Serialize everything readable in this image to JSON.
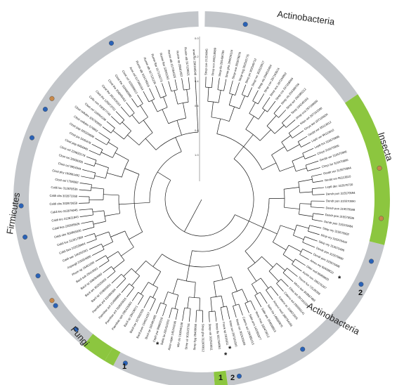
{
  "clade_labels": {
    "actino_top": "Actinobacteria",
    "insecta": "Insecta",
    "actino_bottom": "Actinobacteria",
    "fungi": "Fungi",
    "firmicutes": "Firmicutes"
  },
  "annotations": {
    "mark_1_left": "1",
    "mark_1_bottom": "1",
    "mark_2_bottom": "2",
    "mark_2_right": "2",
    "asterisk": "*"
  },
  "scale_ticks": [
    "1.0",
    "0.8",
    "0.6",
    "0.4",
    "0.2",
    "0.0"
  ],
  "colors": {
    "ring_gray": "#c3c6ca",
    "insecta_green": "#8cc63f",
    "blue_dot": "#2a62b6",
    "orange_dot": "#c7884a",
    "tree_line": "#1a1a1a"
  },
  "leaves": [
    "Strep coe 21224845",
    "Strep sco 290218089",
    "Strep fla 291436785",
    "Strep gha 294534124",
    "Strep sva 302678876",
    "Strep hyg 302542776",
    "Strep pri 302549712",
    "Strep roc 302529917",
    "Strep cla 294810464",
    "Strep con 297193974",
    "Strep sco 297204862",
    "Strep ros 297168094",
    "Strep cls 254389704",
    "Strep aur 256385212",
    "Strep 334245163",
    "Strep sva 297169650",
    "Kitas set 297161500",
    "Chrys lee 297160654",
    "Geobt ver 95113612",
    "Leptt ver 95113610",
    "Leptt hrs 315570895",
    "Chrys 315570905",
    "Geobt ver 315570906",
    "Chrys for 315570806",
    "Geobt ver 315570984",
    "Geobt ver 95113610",
    "Leptt dec 315570730",
    "Dendr pon 315570594",
    "Dendr pon 315570590",
    "Dendr pon 315570588",
    "Dendr pon 315570586",
    "Dendr pon 315570584",
    "Sitop ory 315570592",
    "Sitop ory 315570494",
    "Sitop ory 315570496",
    "Dendr pon 315570890",
    "Dendr pon 315570496",
    "Ameu ory 60409820",
    "Otter sud 60409820",
    "Acrim nov 296276267",
    "Therm fus 72128398",
    "Micro aur 302867483",
    "Kitas set 297161500",
    "Catenu sul 256393141",
    "Catenu ac 116672005",
    "Amyco med 300784183",
    "Salin tro 145590876",
    "Salin are 159038813",
    "Verru max 330470012",
    "Salin arm 145581877",
    "Catenu aci 256385213",
    "Strep roc 302526069",
    "Kitas set 297161500",
    "Frank sp 2915911",
    "Strep fla 301764061",
    "Strep viri 302523811",
    "Strep gha 311900812",
    "Strep hyg 29409660",
    "Strep vir 302523791",
    "Vibr clo 163845108",
    "Aster niger 145241046",
    "Ballis lia 281410201",
    "Ceph pur 90960218",
    "Biocl sp 160481485",
    "Bacil pum 194014257",
    "Bacil cer 157502339",
    "Bacil sp 29419071",
    "Paenibac sph 295425093",
    "Paenibac pol 310643916",
    "Paenibac pol 214889954",
    "Paenibac pol 310484394",
    "Bacil sp 319800051",
    "Bacil am 302520003",
    "Bacil sp 308054660",
    "Bacil sub 29419061",
    "Phom sp 15451000",
    "Aspergil 225554886",
    "Caldi sac 146262061",
    "Caldi bes 222528664",
    "Caldi kro 312617850",
    "Caldi obs 302865026",
    "Caldi bes 225505626",
    "Caldi kro 312621843",
    "Caldi kro 312876045",
    "Caldi obs 302872659",
    "Caldi obs 302872268",
    "Caldi lac 312878535",
    "Clost cel 1706082",
    "Clost phy 160881492",
    "Clost cel 9954944",
    "Clost cel 33336930",
    "Clost cel 220820178",
    "Clost pap 9954945",
    "Clost jos 3445478",
    "Clost pap 326204608",
    "Clost cellulov 570982",
    "Clost cellulov 326765950",
    "Clost cel 118664198",
    "Cellu rum 292877749",
    "Clost the 125973702",
    "Clost the 281419163",
    "Clost the 256005463",
    "Clost the 310660590",
    "Clost cel 315580813",
    "Acet cel 317060154",
    "Rumin alb 315278316",
    "Rumin alb 317131235",
    "Rumin flav 317133273",
    "Rumin flav 32842262",
    "Rumin alb 317064325",
    "Rumin sp 29661452",
    "Rumin alb 317139321",
    "anas ter 296150548"
  ]
}
